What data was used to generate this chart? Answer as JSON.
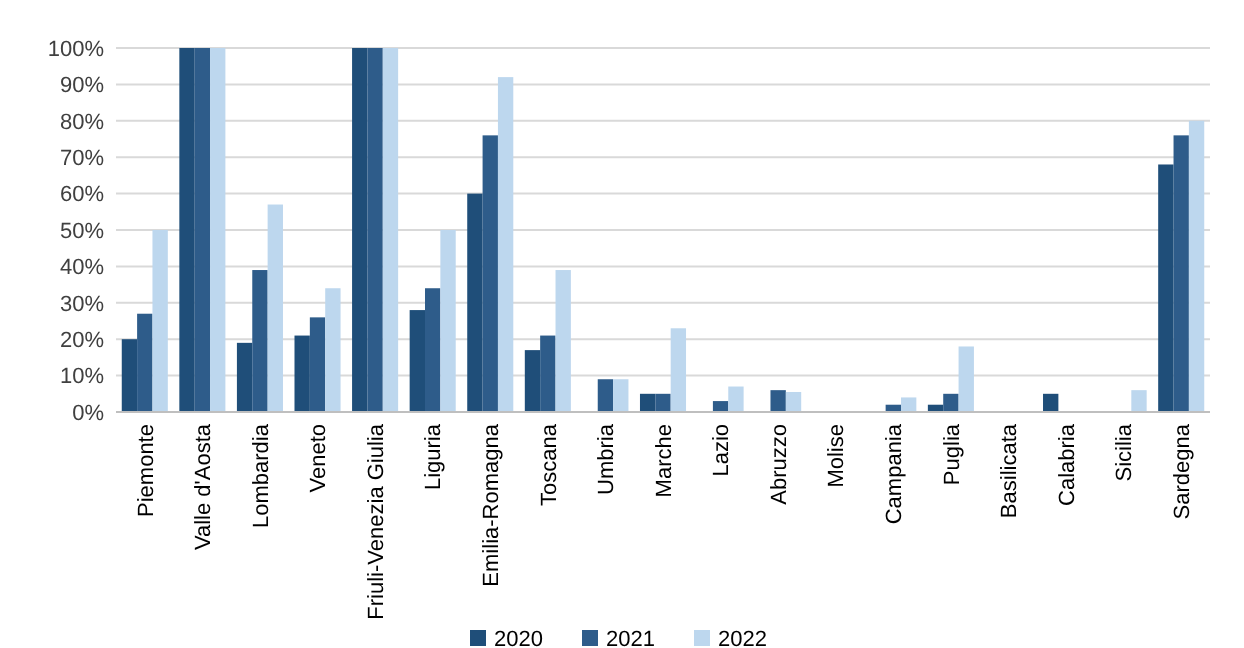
{
  "chart_data": {
    "type": "bar",
    "categories": [
      "Piemonte",
      "Valle d'Aosta",
      "Lombardia",
      "Veneto",
      "Friuli-Venezia Giulia",
      "Liguria",
      "Emilia-Romagna",
      "Toscana",
      "Umbria",
      "Marche",
      "Lazio",
      "Abruzzo",
      "Molise",
      "Campania",
      "Puglia",
      "Basilicata",
      "Calabria",
      "Sicilia",
      "Sardegna"
    ],
    "series": [
      {
        "name": "2020",
        "color": "#1f4e79",
        "values": [
          20,
          100,
          19,
          21,
          100,
          28,
          60,
          17,
          0,
          5,
          0,
          0,
          0,
          0,
          2,
          0,
          5,
          0,
          68
        ]
      },
      {
        "name": "2021",
        "color": "#2e5c8a",
        "values": [
          27,
          100,
          39,
          26,
          100,
          34,
          76,
          21,
          9,
          5,
          3,
          6,
          0,
          2,
          5,
          0,
          0,
          0,
          76
        ]
      },
      {
        "name": "2022",
        "color": "#bdd7ee",
        "values": [
          50,
          100,
          57,
          34,
          100,
          50,
          92,
          39,
          9,
          23,
          7,
          5.5,
          0,
          4,
          18,
          0,
          0,
          6,
          80
        ]
      }
    ],
    "ylim": [
      0,
      100
    ],
    "yticks": [
      {
        "value": 0,
        "label": "0%"
      },
      {
        "value": 10,
        "label": "10%"
      },
      {
        "value": 20,
        "label": "20%"
      },
      {
        "value": 30,
        "label": "30%"
      },
      {
        "value": 40,
        "label": "40%"
      },
      {
        "value": 50,
        "label": "50%"
      },
      {
        "value": 60,
        "label": "60%"
      },
      {
        "value": 70,
        "label": "70%"
      },
      {
        "value": 80,
        "label": "80%"
      },
      {
        "value": 90,
        "label": "90%"
      },
      {
        "value": 100,
        "label": "100%"
      }
    ],
    "grid": "y",
    "legend": "bottom"
  }
}
